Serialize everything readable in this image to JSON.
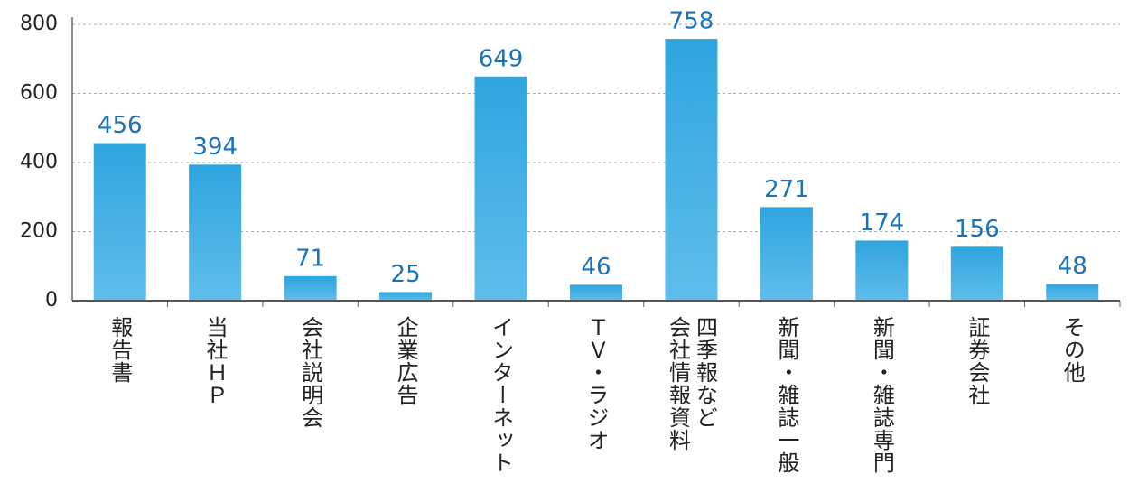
{
  "chart_data": {
    "type": "bar",
    "categories": [
      "報告書",
      "当社ＨＰ",
      "会社説明会",
      "企業広告",
      "インターネット",
      "ＴＶ・ラジオ",
      "四季報など\n会社情報資料",
      "新聞・雑誌一般",
      "新聞・雑誌専門",
      "証券会社",
      "その他"
    ],
    "values": [
      456,
      394,
      71,
      25,
      649,
      46,
      758,
      271,
      174,
      156,
      48
    ],
    "color": "#33a7e0",
    "ylim": [
      0,
      800
    ],
    "yticks": [
      0,
      200,
      400,
      600,
      800
    ],
    "grid": true
  }
}
